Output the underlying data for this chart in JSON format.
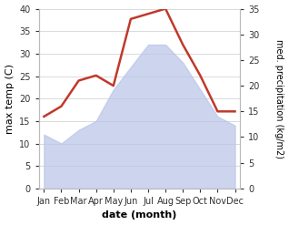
{
  "months": [
    "Jan",
    "Feb",
    "Mar",
    "Apr",
    "May",
    "Jun",
    "Jul",
    "Aug",
    "Sep",
    "Oct",
    "Nov",
    "Dec"
  ],
  "month_indices": [
    0,
    1,
    2,
    3,
    4,
    5,
    6,
    7,
    8,
    9,
    10,
    11
  ],
  "max_temp": [
    12,
    10,
    13,
    15,
    22,
    27,
    32,
    32,
    28,
    22,
    16,
    14
  ],
  "precipitation": [
    14,
    16,
    21,
    22,
    20,
    33,
    34,
    35,
    28,
    22,
    15,
    15
  ],
  "temp_color": "#c0392b",
  "precip_fill_color": "#b8c4e8",
  "temp_ylim": [
    0,
    40
  ],
  "precip_ylim": [
    0,
    35
  ],
  "xlabel": "date (month)",
  "ylabel_left": "max temp (C)",
  "ylabel_right": "med. precipitation (kg/m2)",
  "bg_color": "#ffffff",
  "grid_color": "#cccccc",
  "label_fontsize": 8,
  "tick_fontsize": 7
}
